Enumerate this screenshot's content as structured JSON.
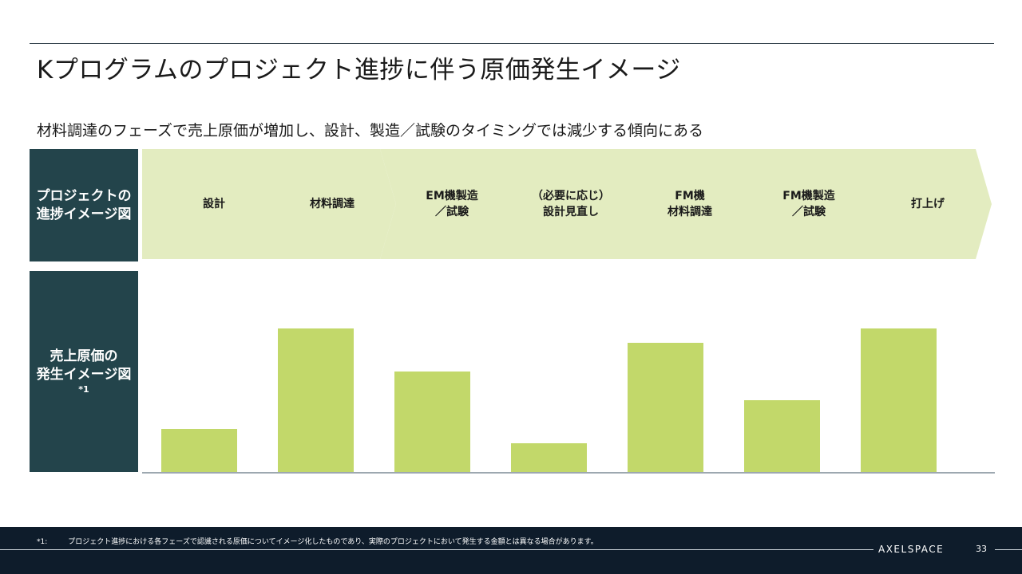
{
  "title": "Kプログラムのプロジェクト進捗に伴う原価発生イメージ",
  "subtitle": "材料調達のフェーズで売上原価が増加し、設計、製造／試験のタイミングでは減少する傾向にある",
  "side_labels": {
    "progress": [
      "プロジェクトの",
      "進捗イメージ図"
    ],
    "cost": [
      "売上原価の",
      "発生イメージ図"
    ],
    "cost_note": "*1"
  },
  "phases": [
    [
      "設計"
    ],
    [
      "材料調達"
    ],
    [
      "EM機製造",
      "／試験"
    ],
    [
      "（必要に応じ）",
      "設計見直し"
    ],
    [
      "FM機",
      "材料調達"
    ],
    [
      "FM機製造",
      "／試験"
    ],
    [
      "打上げ"
    ]
  ],
  "colors": {
    "dark": "#23444b",
    "chevron": "#e3ecc0",
    "bar": "#c2d86a",
    "axis": "#7d8b96",
    "footer": "#0e1c2b"
  },
  "chart_data": {
    "type": "bar",
    "title": "売上原価の発生イメージ図",
    "categories": [
      "設計",
      "材料調達",
      "EM機製造／試験",
      "（必要に応じ）設計見直し",
      "FM機材料調達",
      "FM機製造／試験",
      "打上げ"
    ],
    "values": [
      3,
      10,
      7,
      2,
      9,
      5,
      10
    ],
    "ylim": [
      0,
      14
    ],
    "xlabel": "",
    "ylabel": "",
    "grid": false,
    "legend": "none"
  },
  "footer": {
    "note_mark": "*1:",
    "note": "プロジェクト進捗における各フェーズで認識される原価についてイメージ化したものであり、実際のプロジェクトにおいて発生する金額とは異なる場合があります。",
    "brand": "AXELSPACE",
    "page": "33"
  }
}
